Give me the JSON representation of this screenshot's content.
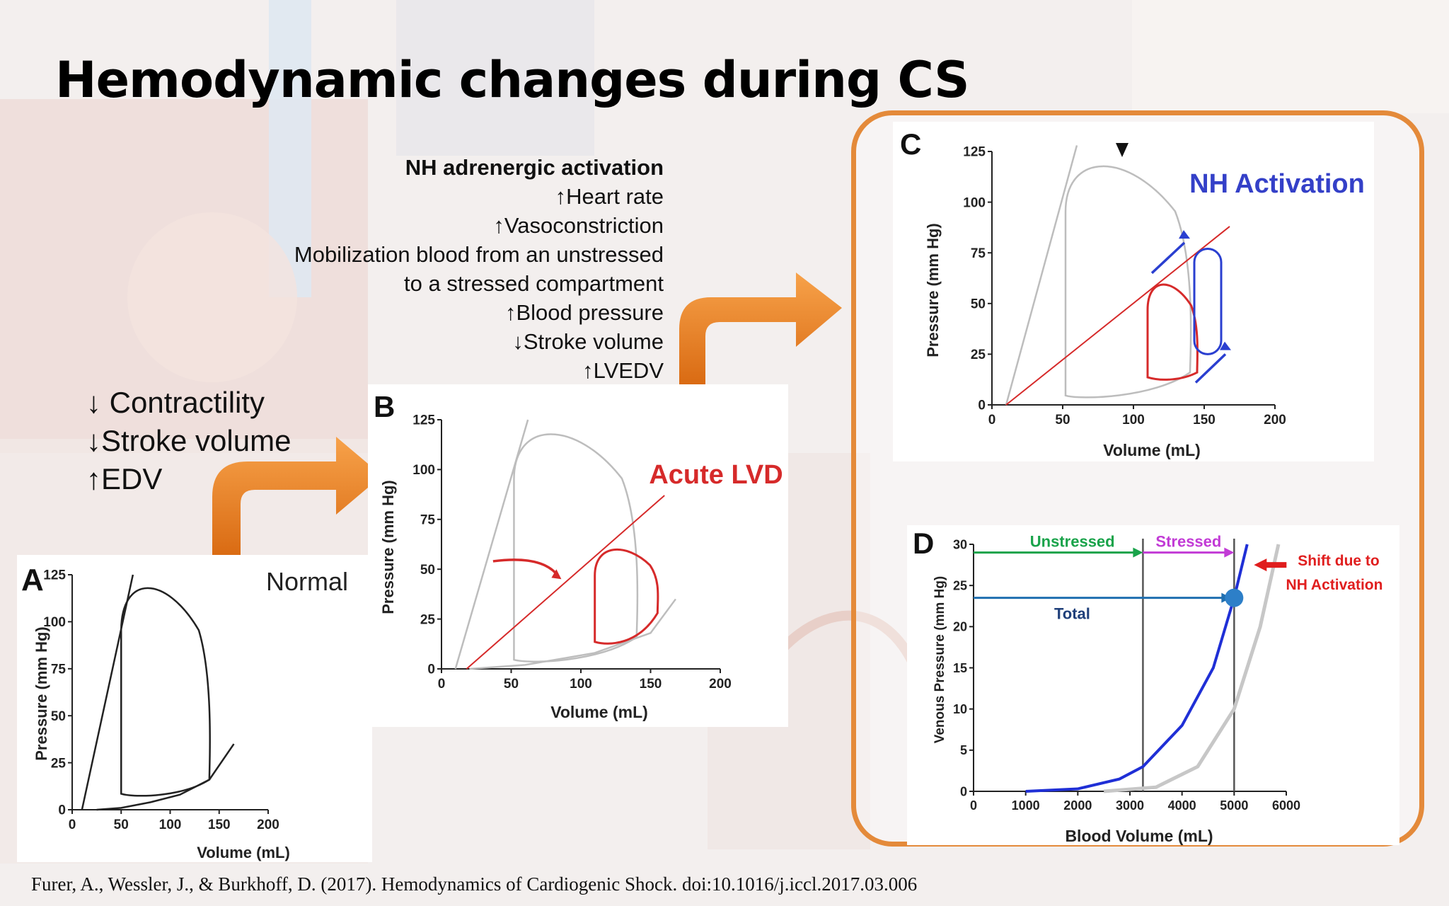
{
  "slide": {
    "title": "Hemodynamic changes during CS",
    "nh_heading": "NH adrenergic activation",
    "nh_items": [
      "↑Heart rate",
      "↑Vasoconstriction",
      "Mobilization blood from an unstressed",
      "to a stressed compartment",
      "↑Blood pressure",
      "↓Stroke volume",
      "↑LVEDV"
    ],
    "lvd_items": [
      "↓ Contractility",
      "↓Stroke volume",
      "↑EDV"
    ],
    "citation": "Furer, A., Wessler, J., & Burkhoff, D. (2017). Hemodynamics of Cardiogenic Shock. doi:10.1016/j.iccl.2017.03.006"
  },
  "chart_data": [
    {
      "panel": "A",
      "type": "line",
      "title": "Normal",
      "xlabel": "Volume (mL)",
      "ylabel": "Pressure (mm Hg)",
      "xlim": [
        0,
        200
      ],
      "ylim": [
        0,
        125
      ],
      "xticks": [
        "0",
        "50",
        "100",
        "150",
        "200"
      ],
      "yticks": [
        "0",
        "25",
        "50",
        "75",
        "100",
        "125"
      ],
      "esvpr": {
        "x": [
          10,
          62
        ],
        "y": [
          0,
          125
        ]
      },
      "edpvr": [
        [
          25,
          0
        ],
        [
          50,
          1
        ],
        [
          80,
          4
        ],
        [
          110,
          8
        ],
        [
          140,
          16
        ],
        [
          165,
          35
        ]
      ],
      "pv_loop": {
        "esv": 50,
        "edv": 140,
        "peak_pressure": 122,
        "end_diastolic_pressure": 16
      },
      "color": "#222222"
    },
    {
      "panel": "B",
      "type": "line",
      "title": "Acute LVD",
      "xlabel": "Volume (mL)",
      "ylabel": "Pressure (mm Hg)",
      "xlim": [
        0,
        200
      ],
      "ylim": [
        0,
        125
      ],
      "xticks": [
        "0",
        "50",
        "100",
        "150",
        "200"
      ],
      "yticks": [
        "0",
        "25",
        "50",
        "75",
        "100",
        "125"
      ],
      "reference_loop": {
        "esv": 52,
        "edv": 140,
        "peak_pressure": 122
      },
      "reduced_esvpr": {
        "x": [
          18,
          160
        ],
        "y": [
          0,
          87
        ]
      },
      "pv_loop": {
        "esv": 110,
        "edv": 155,
        "peak_pressure": 60,
        "end_diastolic_pressure": 28
      },
      "colors": {
        "normal": "#bdbdbd",
        "lvd": "#d62a2a"
      }
    },
    {
      "panel": "C",
      "type": "line",
      "title": "NH Activation",
      "xlabel": "Volume (mL)",
      "ylabel": "Pressure (mm Hg)",
      "xlim": [
        0,
        200
      ],
      "ylim": [
        0,
        125
      ],
      "xticks": [
        "0",
        "50",
        "100",
        "150",
        "200"
      ],
      "yticks": [
        "0",
        "25",
        "50",
        "75",
        "100",
        "125"
      ],
      "reference_loop": {
        "esv": 52,
        "edv": 140,
        "peak_pressure": 122
      },
      "reduced_esvpr": {
        "x": [
          10,
          168
        ],
        "y": [
          0,
          88
        ]
      },
      "lvd_loop": {
        "esv": 110,
        "edv": 145,
        "peak_pressure": 60,
        "end_diastolic_pressure": 16
      },
      "nh_loop": {
        "esv": 143,
        "edv": 162,
        "peak_pressure": 77,
        "end_diastolic_pressure": 25
      },
      "colors": {
        "normal": "#bdbdbd",
        "lvd": "#d62a2a",
        "nh": "#2a3fd0"
      }
    },
    {
      "panel": "D",
      "type": "line",
      "xlabel": "Blood Volume (mL)",
      "ylabel": "Venous Pressure (mm Hg)",
      "xlim": [
        0,
        6000
      ],
      "ylim": [
        0,
        30
      ],
      "xticks": [
        "0",
        "1000",
        "2000",
        "3000",
        "4000",
        "5000",
        "6000"
      ],
      "yticks": [
        "0",
        "5",
        "10",
        "15",
        "20",
        "25",
        "30"
      ],
      "annotations": {
        "unstressed": "Unstressed",
        "stressed": "Stressed",
        "total": "Total",
        "shift_line1": "Shift due to",
        "shift_line2": "NH Activation"
      },
      "unstressed_volume": 3250,
      "total_volume": 5000,
      "operating_point": {
        "x": 5000,
        "y": 23.5
      },
      "series": [
        {
          "name": "",
          "color": "#1f2fd6",
          "points": [
            [
              1000,
              0
            ],
            [
              2000,
              0.3
            ],
            [
              2800,
              1.5
            ],
            [
              3250,
              3
            ],
            [
              4000,
              8
            ],
            [
              4600,
              15
            ],
            [
              5000,
              23.5
            ],
            [
              5250,
              30
            ]
          ]
        },
        {
          "name": "",
          "color": "#c7c7c7",
          "points": [
            [
              2500,
              0
            ],
            [
              3500,
              0.5
            ],
            [
              4300,
              3
            ],
            [
              5000,
              10
            ],
            [
              5500,
              20
            ],
            [
              5850,
              30
            ]
          ]
        }
      ]
    }
  ]
}
